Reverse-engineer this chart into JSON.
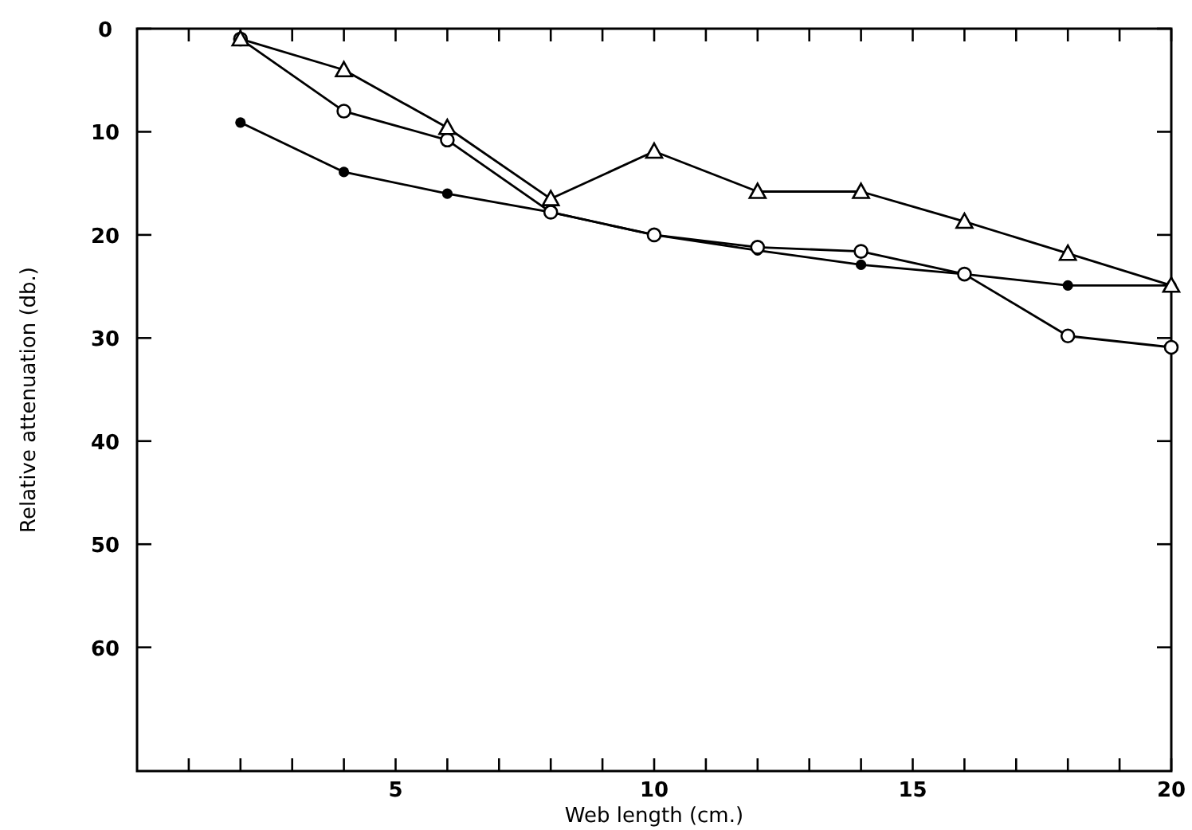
{
  "chart_data": {
    "type": "line",
    "xlabel": "Web length (cm.)",
    "ylabel": "Relative attenuation (db.)",
    "xlim": [
      0,
      20
    ],
    "xticks": [
      {
        "value": 1,
        "label": null
      },
      {
        "value": 2,
        "label": null
      },
      {
        "value": 3,
        "label": null
      },
      {
        "value": 4,
        "label": null
      },
      5,
      {
        "value": 6,
        "label": null
      },
      {
        "value": 7,
        "label": null
      },
      {
        "value": 8,
        "label": null
      },
      {
        "value": 9,
        "label": null
      },
      10,
      {
        "value": 11,
        "label": null
      },
      {
        "value": 12,
        "label": null
      },
      {
        "value": 13,
        "label": null
      },
      {
        "value": 14,
        "label": null
      },
      15,
      {
        "value": 16,
        "label": null
      },
      {
        "value": 17,
        "label": null
      },
      {
        "value": 18,
        "label": null
      },
      {
        "value": 19,
        "label": null
      },
      20
    ],
    "ylim": [
      72,
      0
    ],
    "yticks": [
      0,
      10,
      20,
      30,
      40,
      50,
      60
    ],
    "grid": false,
    "line_style": "solid",
    "x": [
      2,
      4,
      6,
      8,
      10,
      12,
      14,
      16,
      18,
      20
    ],
    "series": [
      {
        "color": "#000000",
        "marker": "circle-filled",
        "values": [
          9.1,
          13.9,
          16,
          17.8,
          20,
          21.5,
          22.9,
          23.8,
          24.9,
          24.9
        ]
      },
      {
        "color": "#000000",
        "marker": "circle",
        "values": [
          1,
          8,
          10.8,
          17.8,
          20,
          21.2,
          21.6,
          23.8,
          29.8,
          30.9
        ]
      },
      {
        "color": "#000000",
        "marker": "triangle",
        "values": [
          1,
          4,
          9.6,
          16.5,
          11.9,
          15.8,
          15.8,
          18.7,
          21.8,
          24.9
        ]
      }
    ]
  }
}
